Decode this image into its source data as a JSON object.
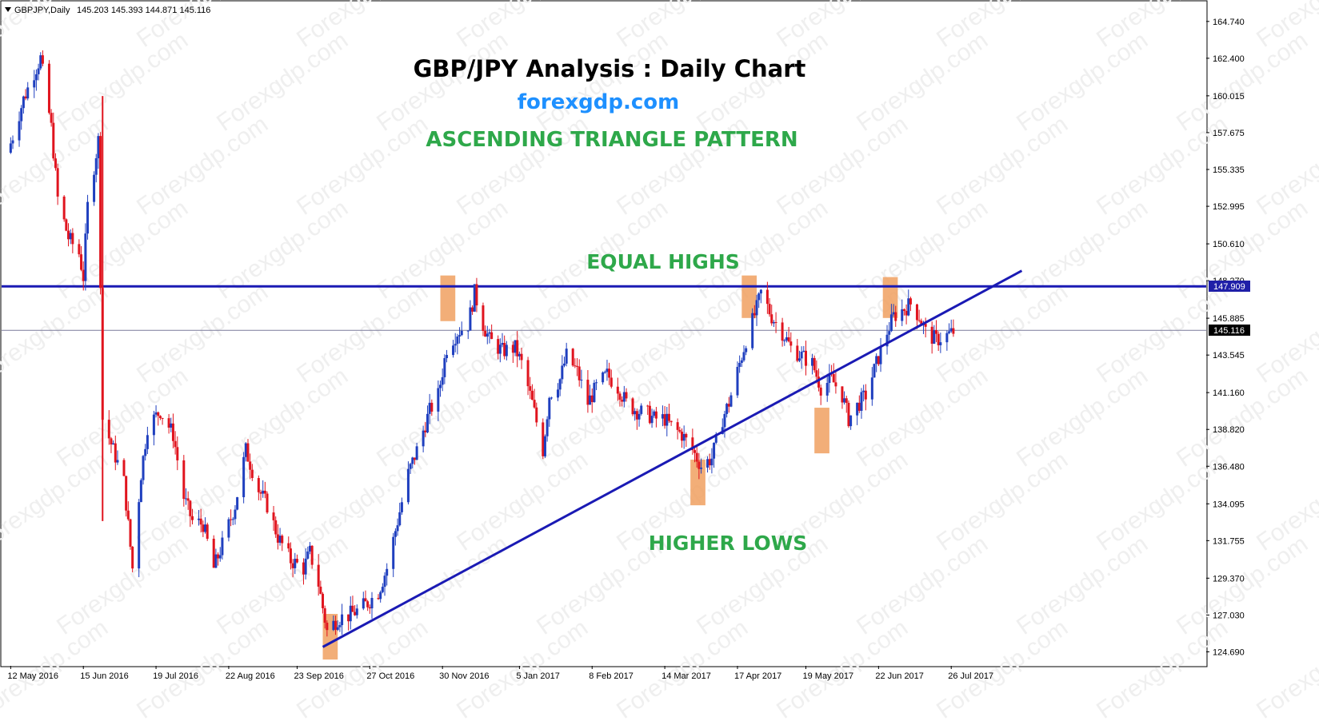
{
  "header": {
    "symbol_text": "GBPJPY,Daily",
    "ohlc_text": "145.203 145.393 144.871 145.116"
  },
  "annotations": {
    "title": "GBP/JPY Analysis : Daily Chart",
    "site": "forexgdp.com",
    "pattern": "ASCENDING TRIANGLE PATTERN",
    "equal_highs": "EQUAL HIGHS",
    "higher_lows": "HIGHER LOWS",
    "watermark": "Forexgdp.com"
  },
  "colors": {
    "bull": "#1f3fbf",
    "bear": "#e0141e",
    "trendline": "#1a1ab4",
    "title": "#000000",
    "site": "#1e90ff",
    "green_text": "#2ea84a",
    "highlight": "#f0a060",
    "price_tag_resistance": "#1f1fa8",
    "price_tag_current": "#000000"
  },
  "chart_data": {
    "type": "candlestick",
    "symbol": "GBPJPY",
    "timeframe": "Daily",
    "last_ohlc": {
      "open": 145.203,
      "high": 145.393,
      "low": 144.871,
      "close": 145.116
    },
    "ylim": [
      123.8,
      166.0
    ],
    "y_ticks": [
      164.74,
      162.4,
      160.015,
      157.675,
      155.335,
      152.995,
      150.61,
      148.27,
      145.885,
      143.545,
      141.16,
      138.82,
      136.48,
      134.095,
      131.755,
      129.37,
      127.03,
      124.69
    ],
    "x_tick_labels": [
      "12 May 2016",
      "15 Jun 2016",
      "19 Jul 2016",
      "22 Aug 2016",
      "23 Sep 2016",
      "27 Oct 2016",
      "30 Nov 2016",
      "5 Jan 2017",
      "8 Feb 2017",
      "14 Mar 2017",
      "17 Apr 2017",
      "19 May 2017",
      "22 Jun 2017",
      "26 Jul 2017"
    ],
    "resistance_level": 147.909,
    "current_price": 145.116,
    "resistance_label": "147.909",
    "current_label": "145.116",
    "trendline": {
      "start": {
        "date": "2016-10-05",
        "price": 125.0
      },
      "end": {
        "date": "2017-08-28",
        "price": 148.9
      }
    },
    "highlight_zones": [
      {
        "date_start": "2016-10-05",
        "date_end": "2016-10-12",
        "price_low": 124.2,
        "price_high": 127.1,
        "role": "higher-low"
      },
      {
        "date_start": "2016-11-29",
        "date_end": "2016-12-06",
        "price_low": 145.7,
        "price_high": 148.6,
        "role": "equal-high"
      },
      {
        "date_start": "2017-03-26",
        "date_end": "2017-04-02",
        "price_low": 134.0,
        "price_high": 136.9,
        "role": "higher-low"
      },
      {
        "date_start": "2017-04-19",
        "date_end": "2017-04-26",
        "price_low": 145.9,
        "price_high": 148.6,
        "role": "equal-high"
      },
      {
        "date_start": "2017-05-23",
        "date_end": "2017-05-30",
        "price_low": 137.3,
        "price_high": 140.2,
        "role": "higher-low"
      },
      {
        "date_start": "2017-06-24",
        "date_end": "2017-07-01",
        "price_low": 145.9,
        "price_high": 148.5,
        "role": "equal-high"
      }
    ],
    "closes": [
      {
        "date": "2016-05-12",
        "close": 157.0
      },
      {
        "date": "2016-05-18",
        "close": 159.8
      },
      {
        "date": "2016-05-23",
        "close": 161.5
      },
      {
        "date": "2016-05-26",
        "close": 162.4
      },
      {
        "date": "2016-05-31",
        "close": 158.0
      },
      {
        "date": "2016-06-03",
        "close": 153.5
      },
      {
        "date": "2016-06-08",
        "close": 151.0
      },
      {
        "date": "2016-06-13",
        "close": 150.0
      },
      {
        "date": "2016-06-15",
        "close": 148.5
      },
      {
        "date": "2016-06-17",
        "close": 153.0
      },
      {
        "date": "2016-06-22",
        "close": 157.2
      },
      {
        "date": "2016-06-24",
        "close": 139.5
      },
      {
        "date": "2016-06-29",
        "close": 137.5
      },
      {
        "date": "2016-07-04",
        "close": 135.5
      },
      {
        "date": "2016-07-08",
        "close": 130.0
      },
      {
        "date": "2016-07-12",
        "close": 136.0
      },
      {
        "date": "2016-07-15",
        "close": 139.0
      },
      {
        "date": "2016-07-21",
        "close": 140.0
      },
      {
        "date": "2016-07-27",
        "close": 138.5
      },
      {
        "date": "2016-08-01",
        "close": 134.5
      },
      {
        "date": "2016-08-05",
        "close": 133.0
      },
      {
        "date": "2016-08-10",
        "close": 132.8
      },
      {
        "date": "2016-08-15",
        "close": 130.0
      },
      {
        "date": "2016-08-19",
        "close": 131.5
      },
      {
        "date": "2016-08-25",
        "close": 134.0
      },
      {
        "date": "2016-08-30",
        "close": 137.5
      },
      {
        "date": "2016-09-05",
        "close": 135.0
      },
      {
        "date": "2016-09-09",
        "close": 134.0
      },
      {
        "date": "2016-09-14",
        "close": 132.0
      },
      {
        "date": "2016-09-20",
        "close": 130.5
      },
      {
        "date": "2016-09-26",
        "close": 130.0
      },
      {
        "date": "2016-09-29",
        "close": 131.0
      },
      {
        "date": "2016-10-03",
        "close": 129.0
      },
      {
        "date": "2016-10-07",
        "close": 126.0
      },
      {
        "date": "2016-10-12",
        "close": 126.8
      },
      {
        "date": "2016-10-17",
        "close": 127.0
      },
      {
        "date": "2016-10-21",
        "close": 127.3
      },
      {
        "date": "2016-10-26",
        "close": 127.8
      },
      {
        "date": "2016-10-31",
        "close": 128.5
      },
      {
        "date": "2016-11-04",
        "close": 130.0
      },
      {
        "date": "2016-11-09",
        "close": 133.0
      },
      {
        "date": "2016-11-14",
        "close": 136.0
      },
      {
        "date": "2016-11-18",
        "close": 137.5
      },
      {
        "date": "2016-11-24",
        "close": 140.0
      },
      {
        "date": "2016-11-28",
        "close": 141.0
      },
      {
        "date": "2016-12-02",
        "close": 144.0
      },
      {
        "date": "2016-12-07",
        "close": 145.0
      },
      {
        "date": "2016-12-12",
        "close": 145.5
      },
      {
        "date": "2016-12-15",
        "close": 147.5
      },
      {
        "date": "2016-12-19",
        "close": 145.5
      },
      {
        "date": "2016-12-22",
        "close": 144.5
      },
      {
        "date": "2016-12-28",
        "close": 143.8
      },
      {
        "date": "2017-01-03",
        "close": 144.0
      },
      {
        "date": "2017-01-06",
        "close": 143.0
      },
      {
        "date": "2017-01-11",
        "close": 140.5
      },
      {
        "date": "2017-01-16",
        "close": 137.5
      },
      {
        "date": "2017-01-19",
        "close": 141.0
      },
      {
        "date": "2017-01-24",
        "close": 142.0
      },
      {
        "date": "2017-01-27",
        "close": 143.5
      },
      {
        "date": "2017-02-01",
        "close": 142.5
      },
      {
        "date": "2017-02-06",
        "close": 140.5
      },
      {
        "date": "2017-02-10",
        "close": 141.5
      },
      {
        "date": "2017-02-15",
        "close": 142.3
      },
      {
        "date": "2017-02-20",
        "close": 141.5
      },
      {
        "date": "2017-02-24",
        "close": 140.5
      },
      {
        "date": "2017-03-01",
        "close": 140.0
      },
      {
        "date": "2017-03-06",
        "close": 139.8
      },
      {
        "date": "2017-03-09",
        "close": 139.5
      },
      {
        "date": "2017-03-14",
        "close": 139.5
      },
      {
        "date": "2017-03-17",
        "close": 139.0
      },
      {
        "date": "2017-03-22",
        "close": 138.5
      },
      {
        "date": "2017-03-27",
        "close": 137.5
      },
      {
        "date": "2017-03-31",
        "close": 136.5
      },
      {
        "date": "2017-04-05",
        "close": 137.0
      },
      {
        "date": "2017-04-10",
        "close": 139.5
      },
      {
        "date": "2017-04-13",
        "close": 140.5
      },
      {
        "date": "2017-04-18",
        "close": 143.0
      },
      {
        "date": "2017-04-21",
        "close": 144.5
      },
      {
        "date": "2017-04-26",
        "close": 146.5
      },
      {
        "date": "2017-04-28",
        "close": 147.5
      },
      {
        "date": "2017-05-03",
        "close": 146.0
      },
      {
        "date": "2017-05-08",
        "close": 145.0
      },
      {
        "date": "2017-05-12",
        "close": 144.0
      },
      {
        "date": "2017-05-17",
        "close": 143.5
      },
      {
        "date": "2017-05-22",
        "close": 143.0
      },
      {
        "date": "2017-05-26",
        "close": 141.5
      },
      {
        "date": "2017-05-31",
        "close": 142.0
      },
      {
        "date": "2017-06-05",
        "close": 141.0
      },
      {
        "date": "2017-06-08",
        "close": 139.5
      },
      {
        "date": "2017-06-13",
        "close": 140.5
      },
      {
        "date": "2017-06-16",
        "close": 141.0
      },
      {
        "date": "2017-06-21",
        "close": 143.0
      },
      {
        "date": "2017-06-26",
        "close": 145.0
      },
      {
        "date": "2017-06-29",
        "close": 146.0
      },
      {
        "date": "2017-07-04",
        "close": 146.5
      },
      {
        "date": "2017-07-07",
        "close": 146.8
      },
      {
        "date": "2017-07-11",
        "close": 146.0
      },
      {
        "date": "2017-07-14",
        "close": 145.0
      },
      {
        "date": "2017-07-19",
        "close": 144.5
      },
      {
        "date": "2017-07-24",
        "close": 144.8
      },
      {
        "date": "2017-07-28",
        "close": 145.1
      }
    ]
  }
}
